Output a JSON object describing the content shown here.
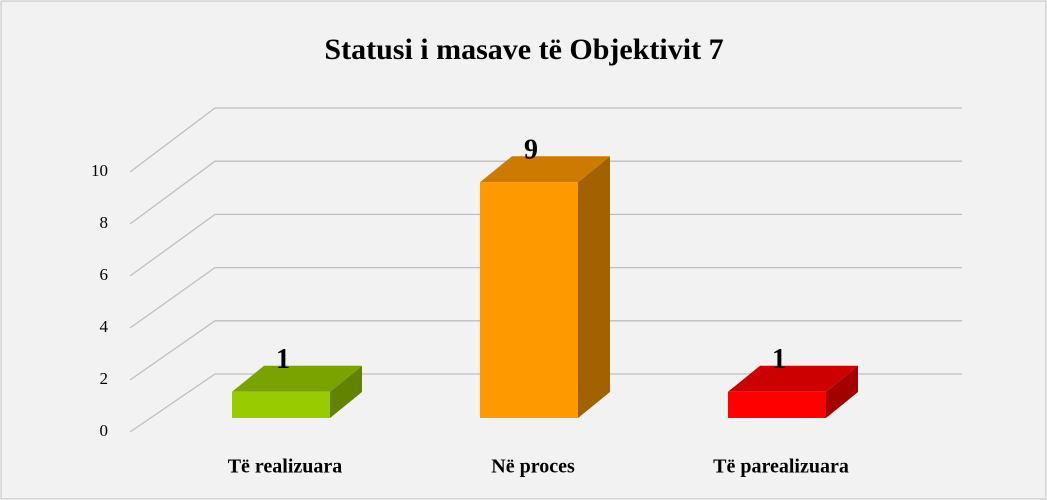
{
  "chart_data": {
    "type": "bar3d",
    "title": "Statusi i masave të Objektivit 7",
    "categories": [
      "Të realizuara",
      "Në proces",
      "Të parealizuara"
    ],
    "values": [
      1,
      9,
      1
    ],
    "colors": [
      "#99cc00",
      "#ff9900",
      "#ff0000"
    ],
    "ylim": [
      0,
      10
    ],
    "yticks": [
      0,
      2,
      4,
      6,
      8,
      10
    ],
    "grid": true
  }
}
